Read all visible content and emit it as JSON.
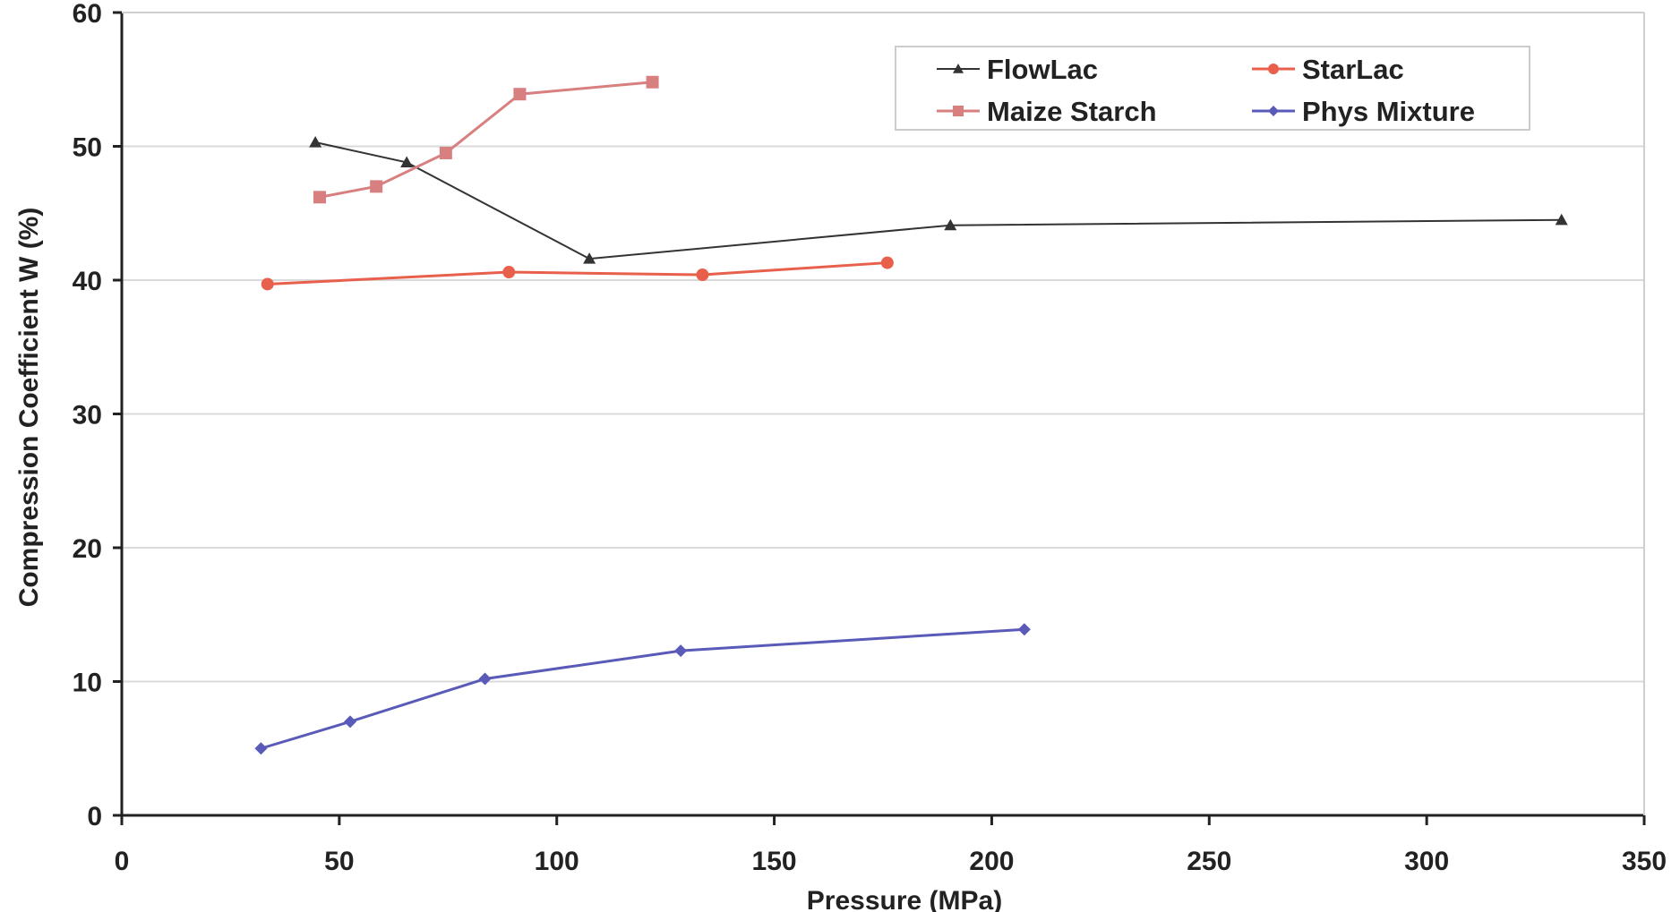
{
  "chart_data": {
    "type": "line",
    "title": "",
    "xlabel": "Pressure (MPa)",
    "ylabel": "Compression Coefficient W (%)",
    "xlim": [
      0,
      350
    ],
    "ylim": [
      0,
      60
    ],
    "x_ticks": [
      "0",
      "50",
      "100",
      "150",
      "200",
      "250",
      "300",
      "350"
    ],
    "y_ticks": [
      "0",
      "10",
      "20",
      "30",
      "40",
      "50",
      "60"
    ],
    "grid": "horizontal",
    "legend_position": "top-right",
    "series": [
      {
        "name": "FlowLac",
        "color": "#333333",
        "marker": "triangle",
        "points": [
          [
            44.5,
            50.3
          ],
          [
            65.5,
            48.8
          ],
          [
            107.5,
            41.6
          ],
          [
            190.5,
            44.1
          ],
          [
            331,
            44.5
          ]
        ]
      },
      {
        "name": "StarLac",
        "color": "#e8604c",
        "marker": "circle",
        "points": [
          [
            33.5,
            39.7
          ],
          [
            89,
            40.6
          ],
          [
            133.5,
            40.4
          ],
          [
            176,
            41.3
          ]
        ]
      },
      {
        "name": "Maize Starch",
        "color": "#d88080",
        "marker": "square",
        "points": [
          [
            45.5,
            46.2
          ],
          [
            58.5,
            47.0
          ],
          [
            74.5,
            49.5
          ],
          [
            91.5,
            53.9
          ],
          [
            122,
            54.8
          ]
        ]
      },
      {
        "name": "Phys Mixture",
        "color": "#5a5ab8",
        "marker": "diamond",
        "points": [
          [
            32,
            5.0
          ],
          [
            52.5,
            7.0
          ],
          [
            83.5,
            10.2
          ],
          [
            128.5,
            12.3
          ],
          [
            207.5,
            13.9
          ]
        ]
      }
    ]
  }
}
